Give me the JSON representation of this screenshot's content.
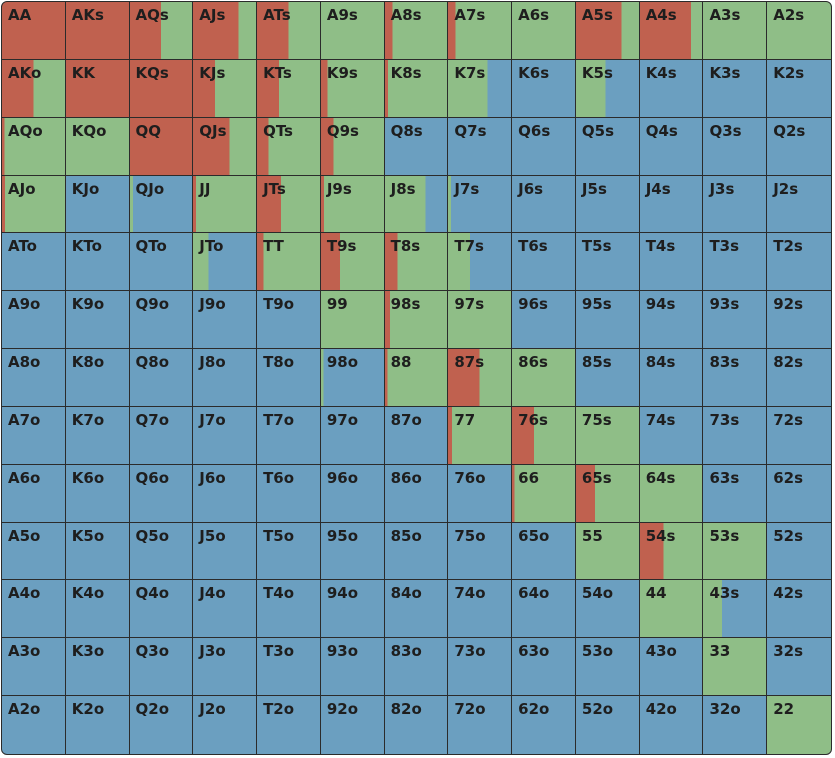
{
  "legend_colors": {
    "raise": "#c0614f",
    "call": "#8fbe87",
    "fold": "#6b9fc0"
  },
  "rows": [
    [
      {
        "label": "AA",
        "raise": 1,
        "call": 0
      },
      {
        "label": "AKs",
        "raise": 1,
        "call": 0
      },
      {
        "label": "AQs",
        "raise": 0.5,
        "call": 0.5
      },
      {
        "label": "AJs",
        "raise": 0.72,
        "call": 0.28
      },
      {
        "label": "ATs",
        "raise": 0.5,
        "call": 0.5
      },
      {
        "label": "A9s",
        "raise": 0,
        "call": 1
      },
      {
        "label": "A8s",
        "raise": 0.12,
        "call": 0.88
      },
      {
        "label": "A7s",
        "raise": 0.12,
        "call": 0.88
      },
      {
        "label": "A6s",
        "raise": 0,
        "call": 1
      },
      {
        "label": "A5s",
        "raise": 0.72,
        "call": 0.28
      },
      {
        "label": "A4s",
        "raise": 0.82,
        "call": 0.18
      },
      {
        "label": "A3s",
        "raise": 0,
        "call": 1
      },
      {
        "label": "A2s",
        "raise": 0,
        "call": 1
      }
    ],
    [
      {
        "label": "AKo",
        "raise": 0.5,
        "call": 0.5
      },
      {
        "label": "KK",
        "raise": 1,
        "call": 0
      },
      {
        "label": "KQs",
        "raise": 1,
        "call": 0
      },
      {
        "label": "KJs",
        "raise": 0.35,
        "call": 0.65
      },
      {
        "label": "KTs",
        "raise": 0.35,
        "call": 0.65
      },
      {
        "label": "K9s",
        "raise": 0.1,
        "call": 0.9
      },
      {
        "label": "K8s",
        "raise": 0.05,
        "call": 0.95
      },
      {
        "label": "K7s",
        "raise": 0,
        "call": 0.63
      },
      {
        "label": "K6s",
        "raise": 0,
        "call": 0
      },
      {
        "label": "K5s",
        "raise": 0,
        "call": 0.47
      },
      {
        "label": "K4s",
        "raise": 0,
        "call": 0
      },
      {
        "label": "K3s",
        "raise": 0,
        "call": 0
      },
      {
        "label": "K2s",
        "raise": 0,
        "call": 0
      }
    ],
    [
      {
        "label": "AQo",
        "raise": 0.04,
        "call": 0.96
      },
      {
        "label": "KQo",
        "raise": 0,
        "call": 1
      },
      {
        "label": "QQ",
        "raise": 1,
        "call": 0
      },
      {
        "label": "QJs",
        "raise": 0.58,
        "call": 0.42
      },
      {
        "label": "QTs",
        "raise": 0.18,
        "call": 0.82
      },
      {
        "label": "Q9s",
        "raise": 0.2,
        "call": 0.8
      },
      {
        "label": "Q8s",
        "raise": 0,
        "call": 0
      },
      {
        "label": "Q7s",
        "raise": 0,
        "call": 0
      },
      {
        "label": "Q6s",
        "raise": 0,
        "call": 0
      },
      {
        "label": "Q5s",
        "raise": 0,
        "call": 0
      },
      {
        "label": "Q4s",
        "raise": 0,
        "call": 0
      },
      {
        "label": "Q3s",
        "raise": 0,
        "call": 0
      },
      {
        "label": "Q2s",
        "raise": 0,
        "call": 0
      }
    ],
    [
      {
        "label": "AJo",
        "raise": 0.05,
        "call": 0.95
      },
      {
        "label": "KJo",
        "raise": 0,
        "call": 0
      },
      {
        "label": "QJo",
        "raise": 0,
        "call": 0.05
      },
      {
        "label": "JJ",
        "raise": 0.05,
        "call": 0.95
      },
      {
        "label": "JTs",
        "raise": 0.38,
        "call": 0.62
      },
      {
        "label": "J9s",
        "raise": 0.05,
        "call": 0.95
      },
      {
        "label": "J8s",
        "raise": 0,
        "call": 0.65
      },
      {
        "label": "J7s",
        "raise": 0,
        "call": 0.05
      },
      {
        "label": "J6s",
        "raise": 0,
        "call": 0
      },
      {
        "label": "J5s",
        "raise": 0,
        "call": 0
      },
      {
        "label": "J4s",
        "raise": 0,
        "call": 0
      },
      {
        "label": "J3s",
        "raise": 0,
        "call": 0
      },
      {
        "label": "J2s",
        "raise": 0,
        "call": 0
      }
    ],
    [
      {
        "label": "ATo",
        "raise": 0,
        "call": 0
      },
      {
        "label": "KTo",
        "raise": 0,
        "call": 0
      },
      {
        "label": "QTo",
        "raise": 0,
        "call": 0
      },
      {
        "label": "JTo",
        "raise": 0,
        "call": 0.25
      },
      {
        "label": "TT",
        "raise": 0.1,
        "call": 0.9
      },
      {
        "label": "T9s",
        "raise": 0.3,
        "call": 0.7
      },
      {
        "label": "T8s",
        "raise": 0.2,
        "call": 0.8
      },
      {
        "label": "T7s",
        "raise": 0,
        "call": 0.35
      },
      {
        "label": "T6s",
        "raise": 0,
        "call": 0
      },
      {
        "label": "T5s",
        "raise": 0,
        "call": 0
      },
      {
        "label": "T4s",
        "raise": 0,
        "call": 0
      },
      {
        "label": "T3s",
        "raise": 0,
        "call": 0
      },
      {
        "label": "T2s",
        "raise": 0,
        "call": 0
      }
    ],
    [
      {
        "label": "A9o",
        "raise": 0,
        "call": 0
      },
      {
        "label": "K9o",
        "raise": 0,
        "call": 0
      },
      {
        "label": "Q9o",
        "raise": 0,
        "call": 0
      },
      {
        "label": "J9o",
        "raise": 0,
        "call": 0
      },
      {
        "label": "T9o",
        "raise": 0,
        "call": 0
      },
      {
        "label": "99",
        "raise": 0,
        "call": 1
      },
      {
        "label": "98s",
        "raise": 0.08,
        "call": 0.92
      },
      {
        "label": "97s",
        "raise": 0,
        "call": 1
      },
      {
        "label": "96s",
        "raise": 0,
        "call": 0
      },
      {
        "label": "95s",
        "raise": 0,
        "call": 0
      },
      {
        "label": "94s",
        "raise": 0,
        "call": 0
      },
      {
        "label": "93s",
        "raise": 0,
        "call": 0
      },
      {
        "label": "92s",
        "raise": 0,
        "call": 0
      }
    ],
    [
      {
        "label": "A8o",
        "raise": 0,
        "call": 0
      },
      {
        "label": "K8o",
        "raise": 0,
        "call": 0
      },
      {
        "label": "Q8o",
        "raise": 0,
        "call": 0
      },
      {
        "label": "J8o",
        "raise": 0,
        "call": 0
      },
      {
        "label": "T8o",
        "raise": 0,
        "call": 0
      },
      {
        "label": "98o",
        "raise": 0,
        "call": 0.04
      },
      {
        "label": "88",
        "raise": 0.04,
        "call": 0.96
      },
      {
        "label": "87s",
        "raise": 0.5,
        "call": 0.5
      },
      {
        "label": "86s",
        "raise": 0,
        "call": 1
      },
      {
        "label": "85s",
        "raise": 0,
        "call": 0
      },
      {
        "label": "84s",
        "raise": 0,
        "call": 0
      },
      {
        "label": "83s",
        "raise": 0,
        "call": 0
      },
      {
        "label": "82s",
        "raise": 0,
        "call": 0
      }
    ],
    [
      {
        "label": "A7o",
        "raise": 0,
        "call": 0
      },
      {
        "label": "K7o",
        "raise": 0,
        "call": 0
      },
      {
        "label": "Q7o",
        "raise": 0,
        "call": 0
      },
      {
        "label": "J7o",
        "raise": 0,
        "call": 0
      },
      {
        "label": "T7o",
        "raise": 0,
        "call": 0
      },
      {
        "label": "97o",
        "raise": 0,
        "call": 0
      },
      {
        "label": "87o",
        "raise": 0,
        "call": 0
      },
      {
        "label": "77",
        "raise": 0.06,
        "call": 0.94
      },
      {
        "label": "76s",
        "raise": 0.35,
        "call": 0.65
      },
      {
        "label": "75s",
        "raise": 0,
        "call": 1
      },
      {
        "label": "74s",
        "raise": 0,
        "call": 0
      },
      {
        "label": "73s",
        "raise": 0,
        "call": 0
      },
      {
        "label": "72s",
        "raise": 0,
        "call": 0
      }
    ],
    [
      {
        "label": "A6o",
        "raise": 0,
        "call": 0
      },
      {
        "label": "K6o",
        "raise": 0,
        "call": 0
      },
      {
        "label": "Q6o",
        "raise": 0,
        "call": 0
      },
      {
        "label": "J6o",
        "raise": 0,
        "call": 0
      },
      {
        "label": "T6o",
        "raise": 0,
        "call": 0
      },
      {
        "label": "96o",
        "raise": 0,
        "call": 0
      },
      {
        "label": "86o",
        "raise": 0,
        "call": 0
      },
      {
        "label": "76o",
        "raise": 0,
        "call": 0
      },
      {
        "label": "66",
        "raise": 0.04,
        "call": 0.96
      },
      {
        "label": "65s",
        "raise": 0.3,
        "call": 0.7
      },
      {
        "label": "64s",
        "raise": 0,
        "call": 1
      },
      {
        "label": "63s",
        "raise": 0,
        "call": 0
      },
      {
        "label": "62s",
        "raise": 0,
        "call": 0
      }
    ],
    [
      {
        "label": "A5o",
        "raise": 0,
        "call": 0
      },
      {
        "label": "K5o",
        "raise": 0,
        "call": 0
      },
      {
        "label": "Q5o",
        "raise": 0,
        "call": 0
      },
      {
        "label": "J5o",
        "raise": 0,
        "call": 0
      },
      {
        "label": "T5o",
        "raise": 0,
        "call": 0
      },
      {
        "label": "95o",
        "raise": 0,
        "call": 0
      },
      {
        "label": "85o",
        "raise": 0,
        "call": 0
      },
      {
        "label": "75o",
        "raise": 0,
        "call": 0
      },
      {
        "label": "65o",
        "raise": 0,
        "call": 0
      },
      {
        "label": "55",
        "raise": 0,
        "call": 1
      },
      {
        "label": "54s",
        "raise": 0.38,
        "call": 0.62
      },
      {
        "label": "53s",
        "raise": 0,
        "call": 1
      },
      {
        "label": "52s",
        "raise": 0,
        "call": 0
      }
    ],
    [
      {
        "label": "A4o",
        "raise": 0,
        "call": 0
      },
      {
        "label": "K4o",
        "raise": 0,
        "call": 0
      },
      {
        "label": "Q4o",
        "raise": 0,
        "call": 0
      },
      {
        "label": "J4o",
        "raise": 0,
        "call": 0
      },
      {
        "label": "T4o",
        "raise": 0,
        "call": 0
      },
      {
        "label": "94o",
        "raise": 0,
        "call": 0
      },
      {
        "label": "84o",
        "raise": 0,
        "call": 0
      },
      {
        "label": "74o",
        "raise": 0,
        "call": 0
      },
      {
        "label": "64o",
        "raise": 0,
        "call": 0
      },
      {
        "label": "54o",
        "raise": 0,
        "call": 0
      },
      {
        "label": "44",
        "raise": 0,
        "call": 1
      },
      {
        "label": "43s",
        "raise": 0,
        "call": 0.3
      },
      {
        "label": "42s",
        "raise": 0,
        "call": 0
      }
    ],
    [
      {
        "label": "A3o",
        "raise": 0,
        "call": 0
      },
      {
        "label": "K3o",
        "raise": 0,
        "call": 0
      },
      {
        "label": "Q3o",
        "raise": 0,
        "call": 0
      },
      {
        "label": "J3o",
        "raise": 0,
        "call": 0
      },
      {
        "label": "T3o",
        "raise": 0,
        "call": 0
      },
      {
        "label": "93o",
        "raise": 0,
        "call": 0
      },
      {
        "label": "83o",
        "raise": 0,
        "call": 0
      },
      {
        "label": "73o",
        "raise": 0,
        "call": 0
      },
      {
        "label": "63o",
        "raise": 0,
        "call": 0
      },
      {
        "label": "53o",
        "raise": 0,
        "call": 0
      },
      {
        "label": "43o",
        "raise": 0,
        "call": 0
      },
      {
        "label": "33",
        "raise": 0,
        "call": 1
      },
      {
        "label": "32s",
        "raise": 0,
        "call": 0
      }
    ],
    [
      {
        "label": "A2o",
        "raise": 0,
        "call": 0
      },
      {
        "label": "K2o",
        "raise": 0,
        "call": 0
      },
      {
        "label": "Q2o",
        "raise": 0,
        "call": 0
      },
      {
        "label": "J2o",
        "raise": 0,
        "call": 0
      },
      {
        "label": "T2o",
        "raise": 0,
        "call": 0
      },
      {
        "label": "92o",
        "raise": 0,
        "call": 0
      },
      {
        "label": "82o",
        "raise": 0,
        "call": 0
      },
      {
        "label": "72o",
        "raise": 0,
        "call": 0
      },
      {
        "label": "62o",
        "raise": 0,
        "call": 0
      },
      {
        "label": "52o",
        "raise": 0,
        "call": 0
      },
      {
        "label": "42o",
        "raise": 0,
        "call": 0
      },
      {
        "label": "32o",
        "raise": 0,
        "call": 0
      },
      {
        "label": "22",
        "raise": 0,
        "call": 1
      }
    ]
  ]
}
